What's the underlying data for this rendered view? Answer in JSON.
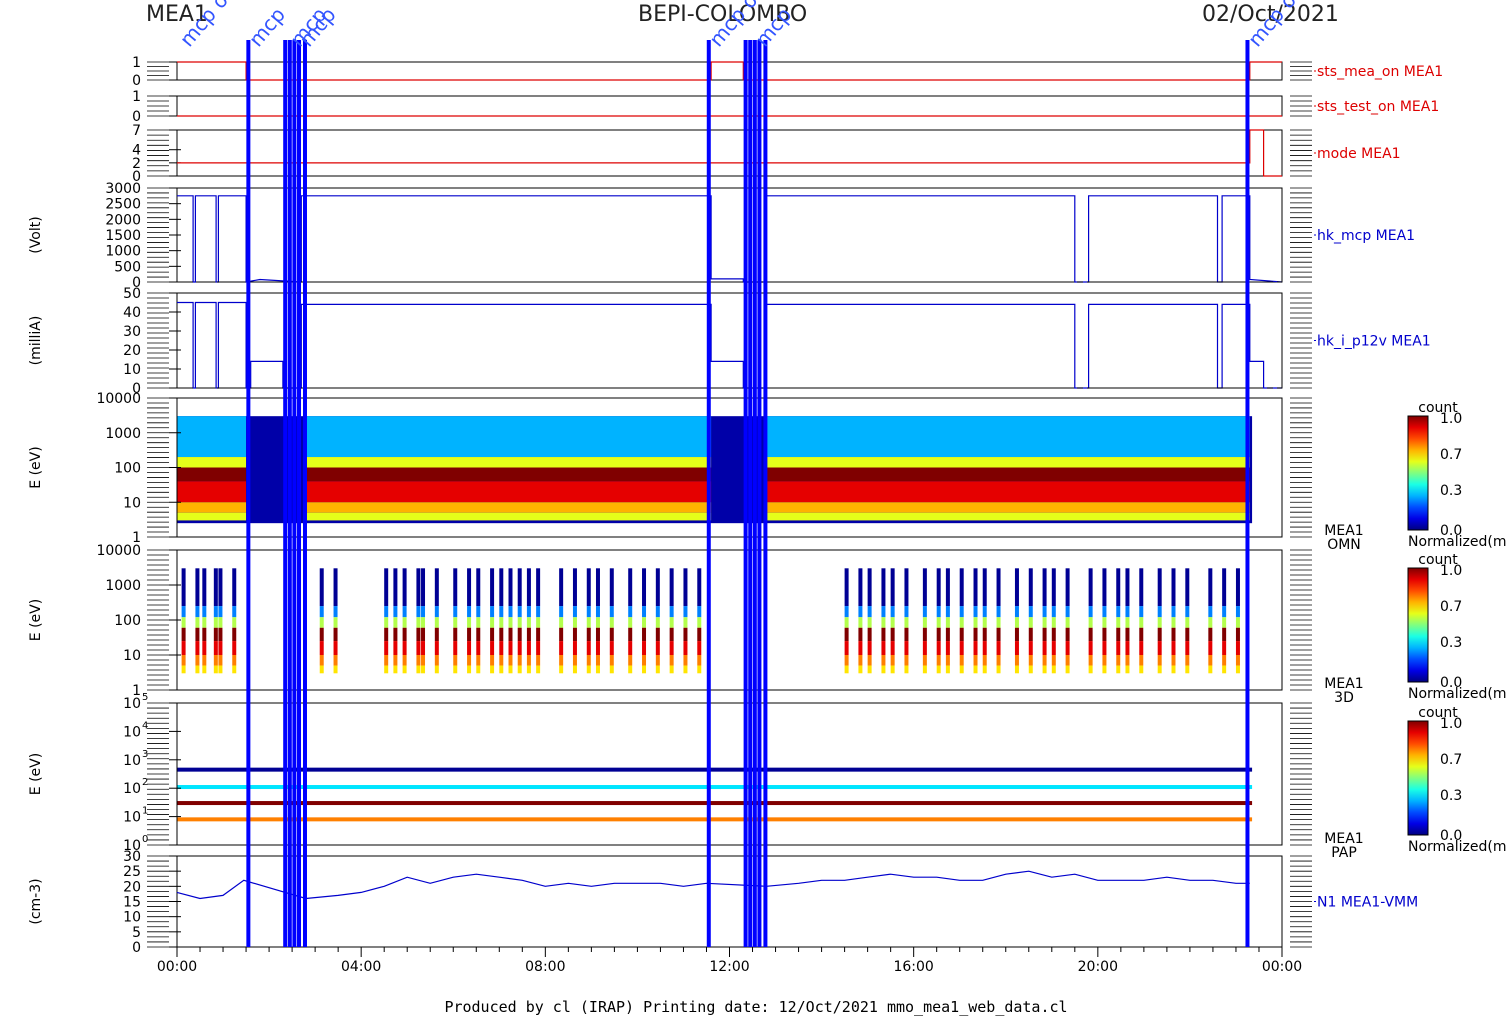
{
  "header": {
    "left": "MEA1",
    "center": "BEPI-COLOMBO",
    "right": "02/Oct/2021"
  },
  "footer": "Produced by cl (IRAP)    Printing date: 12/Oct/2021    mmo_mea1_web_data.cl",
  "top_annotations": [
    "mcp on",
    "mcp",
    "mcp",
    "mcp",
    "mcp on",
    "mcp",
    "mcp off"
  ],
  "colors": {
    "red_trace": "#dd0000",
    "blue_trace": "#0000cc",
    "event_line": "#0000ff",
    "axis": "#000000"
  },
  "chart_data": {
    "type": "line",
    "x_unit": "hours (UT) on 02/Oct/2021",
    "x_range": [
      0,
      24
    ],
    "x_ticks": [
      "00:00",
      "04:00",
      "08:00",
      "12:00",
      "16:00",
      "20:00",
      "00:00"
    ],
    "event_lines_hours": [
      1.55,
      2.35,
      2.45,
      2.55,
      2.65,
      2.78,
      11.55,
      12.35,
      12.45,
      12.55,
      12.65,
      12.78,
      23.25
    ],
    "panels": [
      {
        "id": "sts_mea_on",
        "label": "sts_mea_on MEA1",
        "ylabel": "",
        "ylim": [
          0,
          1
        ],
        "yticks": [
          "1",
          "0"
        ],
        "trace": "red",
        "series": [
          {
            "x": [
              0,
              1.5,
              1.5,
              11.6,
              11.6,
              12.3,
              12.3,
              23.3,
              23.3,
              24
            ],
            "y": [
              1,
              1,
              0,
              0,
              1,
              1,
              0,
              0,
              1,
              1
            ]
          }
        ]
      },
      {
        "id": "sts_test_on",
        "label": "sts_test_on MEA1",
        "ylabel": "",
        "ylim": [
          0,
          1
        ],
        "yticks": [
          "1",
          "0"
        ],
        "trace": "red",
        "series": [
          {
            "x": [
              0,
              24
            ],
            "y": [
              0,
              0
            ]
          }
        ]
      },
      {
        "id": "mode",
        "label": "mode MEA1",
        "ylabel": "",
        "ylim": [
          0,
          7
        ],
        "yticks": [
          "7",
          "4",
          "2",
          "0"
        ],
        "trace": "red",
        "series": [
          {
            "x": [
              0,
              23.3,
              23.3,
              23.6,
              23.6,
              24
            ],
            "y": [
              2,
              2,
              7,
              7,
              0,
              0
            ]
          }
        ]
      },
      {
        "id": "hk_mcp",
        "label": "hk_mcp MEA1",
        "ylabel": "(Volt)",
        "ylim": [
          0,
          3000
        ],
        "yticks": [
          "3000",
          "2500",
          "2000",
          "1500",
          "1000",
          "500",
          "0"
        ],
        "trace": "blue",
        "series": [
          {
            "x": [
              0,
              0.35,
              0.35,
              0.4,
              0.4,
              0.85,
              0.85,
              0.9,
              0.9,
              1.5,
              1.5,
              1.8,
              2.7,
              2.7,
              11.6,
              11.6,
              12.3,
              12.3,
              12.8,
              12.8,
              19.5,
              19.5,
              19.8,
              19.8,
              22.6,
              22.6,
              22.7,
              22.7,
              23.3,
              23.3,
              24
            ],
            "y": [
              2750,
              2750,
              0,
              0,
              2750,
              2750,
              0,
              0,
              2750,
              2750,
              0,
              80,
              0,
              2750,
              2750,
              100,
              100,
              0,
              0,
              2750,
              2750,
              0,
              0,
              2750,
              2750,
              0,
              0,
              2750,
              2750,
              80,
              0
            ]
          }
        ]
      },
      {
        "id": "hk_i_p12v",
        "label": "hk_i_p12v MEA1",
        "ylabel": "(milliA)",
        "ylim": [
          0,
          50
        ],
        "yticks": [
          "50",
          "40",
          "30",
          "20",
          "10",
          "0"
        ],
        "trace": "blue",
        "series": [
          {
            "x": [
              0,
              0.35,
              0.35,
              0.4,
              0.4,
              0.85,
              0.85,
              0.9,
              0.9,
              1.5,
              1.5,
              1.6,
              1.6,
              2.3,
              2.3,
              2.7,
              2.7,
              11.6,
              11.6,
              12.3,
              12.3,
              12.8,
              12.8,
              19.5,
              19.5,
              19.8,
              19.8,
              22.6,
              22.6,
              22.7,
              22.7,
              23.3,
              23.3,
              23.6,
              23.6,
              24
            ],
            "y": [
              45,
              45,
              0,
              0,
              45,
              45,
              0,
              0,
              45,
              45,
              0,
              0,
              14,
              14,
              0,
              0,
              44,
              44,
              14,
              14,
              0,
              0,
              44,
              44,
              0,
              0,
              44,
              44,
              0,
              0,
              44,
              44,
              14,
              14,
              0,
              0
            ]
          }
        ]
      },
      {
        "id": "omni",
        "label": "MEA1 OMN",
        "ylabel": "E (eV)",
        "scale": "log",
        "ylim": [
          1,
          10000
        ],
        "yticks": [
          "10000",
          "1000",
          "100",
          "10",
          "1"
        ],
        "type": "heatmap",
        "colorbar": {
          "title": "count",
          "ticks": [
            "1.0",
            "0.7",
            "0.3",
            "0.0"
          ],
          "label": "Normalized(m"
        },
        "active_intervals_hours": [
          [
            0,
            1.5
          ],
          [
            2.8,
            11.6
          ],
          [
            12.8,
            23.3
          ]
        ],
        "energy_profile": [
          {
            "e": 3000,
            "v": 0.0
          },
          {
            "e": 200,
            "v": 0.3
          },
          {
            "e": 100,
            "v": 0.6
          },
          {
            "e": 40,
            "v": 1.0
          },
          {
            "e": 10,
            "v": 0.9
          },
          {
            "e": 5,
            "v": 0.7
          },
          {
            "e": 3,
            "v": 0.6
          }
        ]
      },
      {
        "id": "3d",
        "label": "MEA1 3D",
        "ylabel": "E (eV)",
        "scale": "log",
        "ylim": [
          1,
          10000
        ],
        "yticks": [
          "10000",
          "1000",
          "100",
          "10",
          "1"
        ],
        "type": "heatmap",
        "colorbar": {
          "title": "count",
          "ticks": [
            "1.0",
            "0.7",
            "0.3",
            "0.0"
          ],
          "label": "Normalized(m"
        },
        "burst_hours": [
          0.1,
          0.4,
          0.55,
          0.8,
          0.9,
          1.2,
          3.1,
          3.4,
          4.5,
          4.7,
          4.9,
          5.2,
          5.3,
          5.6,
          6.0,
          6.3,
          6.5,
          6.8,
          7.0,
          7.2,
          7.4,
          7.6,
          7.8,
          8.3,
          8.6,
          8.9,
          9.1,
          9.4,
          9.8,
          10.1,
          10.4,
          10.7,
          11.0,
          11.3,
          14.5,
          14.8,
          15.0,
          15.3,
          15.5,
          15.8,
          16.2,
          16.5,
          16.7,
          17.0,
          17.3,
          17.5,
          17.8,
          18.2,
          18.5,
          18.8,
          19.0,
          19.3,
          19.8,
          20.1,
          20.4,
          20.6,
          20.9,
          21.3,
          21.6,
          21.9,
          22.4,
          22.7,
          23.0
        ]
      },
      {
        "id": "pap",
        "label": "MEA1 PAP",
        "ylabel": "E (eV)",
        "scale": "log",
        "ylim": [
          1,
          100000
        ],
        "yticks": [
          "10^5",
          "10^4",
          "10^3",
          "10^2",
          "10^1",
          "10^0"
        ],
        "type": "heatmap",
        "colorbar": {
          "title": "count",
          "ticks": [
            "1.0",
            "0.7",
            "0.3",
            "0.0"
          ],
          "label": "Normalized(m"
        },
        "bands": [
          {
            "e": 450,
            "v": 0.02
          },
          {
            "e": 110,
            "v": 0.35
          },
          {
            "e": 30,
            "v": 1.0
          },
          {
            "e": 8,
            "v": 0.75
          }
        ]
      },
      {
        "id": "n1",
        "label": "N1 MEA1-VMM",
        "ylabel": "(cm-3)",
        "ylim": [
          0,
          30
        ],
        "yticks": [
          "30",
          "25",
          "20",
          "15",
          "10",
          "5",
          "0"
        ],
        "trace": "blue",
        "series": [
          {
            "x": [
              0,
              0.5,
              1.0,
              1.45,
              2.8,
              3.5,
              4.0,
              4.5,
              5.0,
              5.5,
              6.0,
              6.5,
              7.0,
              7.5,
              8.0,
              8.5,
              9.0,
              9.5,
              10.0,
              10.5,
              11.0,
              11.5,
              12.8,
              13.5,
              14.0,
              14.5,
              15.0,
              15.5,
              16.0,
              16.5,
              17.0,
              17.5,
              18.0,
              18.5,
              19.0,
              19.5,
              20.0,
              20.5,
              21.0,
              21.5,
              22.0,
              22.5,
              23.0,
              23.3
            ],
            "y": [
              18,
              16,
              17,
              22,
              16,
              17,
              18,
              20,
              23,
              21,
              23,
              24,
              23,
              22,
              20,
              21,
              20,
              21,
              21,
              21,
              20,
              21,
              20,
              21,
              22,
              22,
              23,
              24,
              23,
              23,
              22,
              22,
              24,
              25,
              23,
              24,
              22,
              22,
              22,
              23,
              22,
              22,
              21,
              21
            ]
          }
        ]
      }
    ]
  }
}
